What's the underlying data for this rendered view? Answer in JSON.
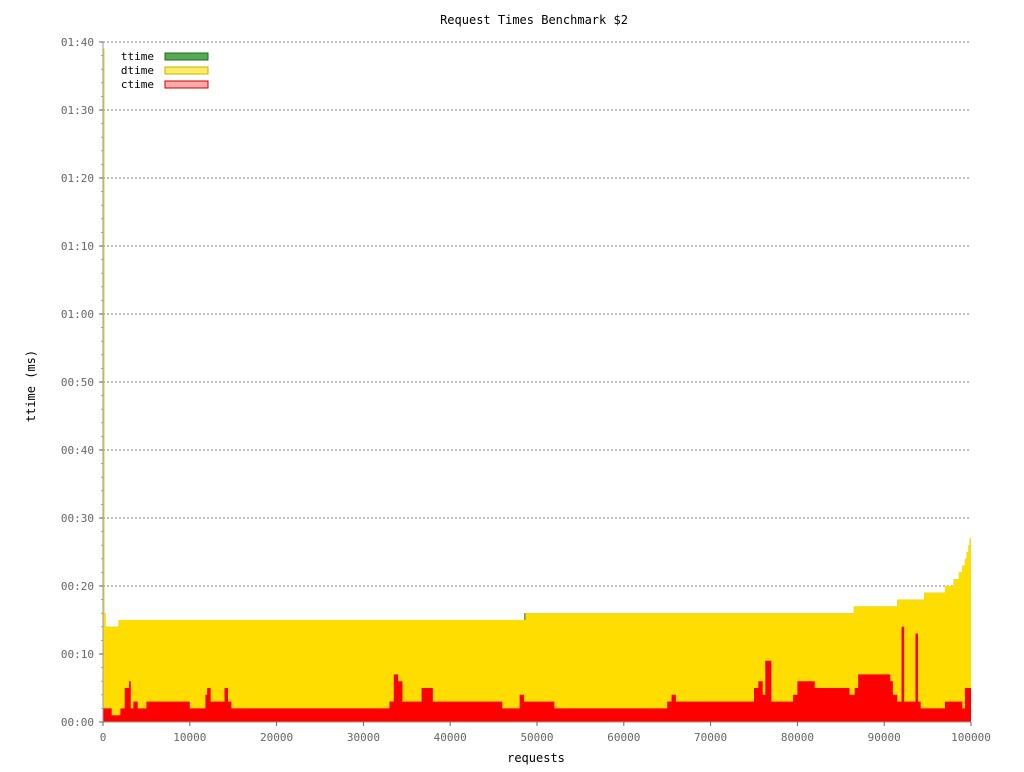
{
  "chart_data": {
    "type": "area",
    "title": "Request Times Benchmark $2",
    "xlabel": "requests",
    "ylabel": "ttime (ms)",
    "xlim": [
      0,
      100000
    ],
    "ylim": [
      0,
      100
    ],
    "grid": true,
    "legend_position": "top-left",
    "x_ticks": [
      {
        "value": 0,
        "label": "0"
      },
      {
        "value": 10000,
        "label": "10000"
      },
      {
        "value": 20000,
        "label": "20000"
      },
      {
        "value": 30000,
        "label": "30000"
      },
      {
        "value": 40000,
        "label": "40000"
      },
      {
        "value": 50000,
        "label": "50000"
      },
      {
        "value": 60000,
        "label": "60000"
      },
      {
        "value": 70000,
        "label": "70000"
      },
      {
        "value": 80000,
        "label": "80000"
      },
      {
        "value": 90000,
        "label": "90000"
      },
      {
        "value": 100000,
        "label": "100000"
      }
    ],
    "y_ticks": [
      {
        "value": 0,
        "label": "00:00"
      },
      {
        "value": 10,
        "label": "00:10"
      },
      {
        "value": 20,
        "label": "00:20"
      },
      {
        "value": 30,
        "label": "00:30"
      },
      {
        "value": 40,
        "label": "00:40"
      },
      {
        "value": 50,
        "label": "00:50"
      },
      {
        "value": 60,
        "label": "01:00"
      },
      {
        "value": 70,
        "label": "01:10"
      },
      {
        "value": 80,
        "label": "01:20"
      },
      {
        "value": 90,
        "label": "01:30"
      },
      {
        "value": 100,
        "label": "01:40"
      }
    ],
    "colors": {
      "ttime": "#55aa55",
      "ttime_border": "#1a6e1a",
      "dtime": "#ffdd00",
      "dtime_legend": "#ffee66",
      "dtime_border": "#c9b000",
      "ctime": "#ff0000",
      "ctime_legend": "#ffaaaa",
      "ctime_border": "#cc0000",
      "grid": "#555555",
      "axis_text": "#666666",
      "title_text": "#000000"
    },
    "series": [
      {
        "name": "ttime",
        "x": [
          0,
          150,
          300,
          500,
          1800,
          48500,
          48600,
          76600,
          86500,
          91500,
          94600,
          97000,
          98000,
          98600,
          99000,
          99300,
          99500,
          99700,
          99850,
          100000
        ],
        "values": [
          99,
          16,
          14,
          14,
          15,
          15,
          16,
          16,
          17,
          18,
          19,
          20,
          21,
          22,
          23,
          24,
          25,
          26,
          27,
          28
        ]
      },
      {
        "name": "dtime",
        "x": [
          0,
          150,
          300,
          500,
          1800,
          48500,
          48600,
          76600,
          86500,
          91500,
          94600,
          97000,
          98000,
          98600,
          99000,
          99300,
          99500,
          99700,
          99850,
          100000
        ],
        "values": [
          99,
          16,
          14,
          14,
          15,
          15,
          16,
          16,
          17,
          18,
          19,
          20,
          21,
          22,
          23,
          24,
          25,
          26,
          27,
          28
        ]
      },
      {
        "name": "ctime",
        "x": [
          0,
          1000,
          2000,
          2500,
          3000,
          3200,
          3500,
          4000,
          5000,
          10000,
          11800,
          12000,
          12400,
          14000,
          14400,
          14800,
          33000,
          33500,
          34000,
          34500,
          36700,
          37500,
          38000,
          46000,
          48000,
          48500,
          52000,
          65000,
          65500,
          66000,
          75000,
          75500,
          76000,
          76300,
          77000,
          79500,
          80000,
          82000,
          86000,
          86600,
          87000,
          90700,
          91000,
          91500,
          92000,
          92300,
          93600,
          93900,
          94200,
          97000,
          99000,
          99300,
          100000
        ],
        "values": [
          2,
          1,
          2,
          5,
          6,
          2,
          3,
          2,
          3,
          2,
          4,
          5,
          3,
          5,
          3,
          2,
          3,
          7,
          6,
          3,
          5,
          5,
          3,
          2,
          4,
          3,
          2,
          3,
          4,
          3,
          5,
          6,
          4,
          9,
          3,
          4,
          6,
          5,
          4,
          5,
          7,
          6,
          4,
          3,
          14,
          3,
          13,
          3,
          2,
          3,
          2,
          5,
          2
        ]
      }
    ]
  }
}
